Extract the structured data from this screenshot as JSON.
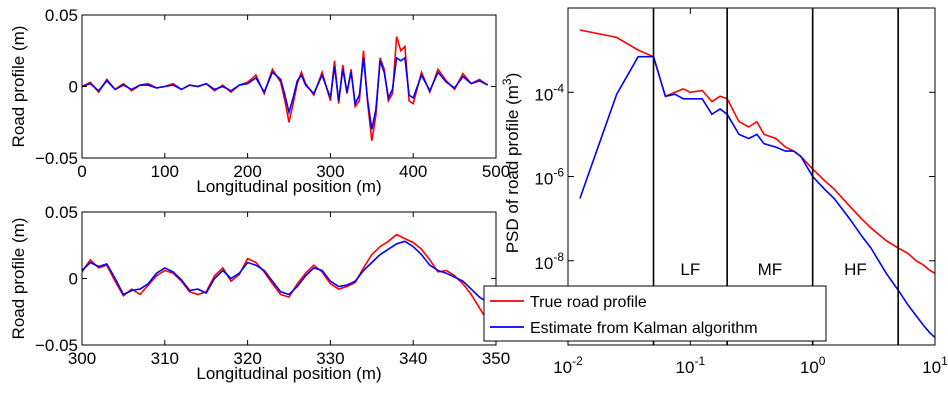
{
  "chart_data": [
    {
      "type": "line",
      "xlabel": "Longitudinal position (m)",
      "ylabel": "Road profile (m)",
      "xlim": [
        0,
        500
      ],
      "ylim": [
        -0.05,
        0.05
      ],
      "xticks": [
        "0",
        "100",
        "200",
        "300",
        "400",
        "500"
      ],
      "yticks": [
        "-0.05",
        "0",
        "0.05"
      ],
      "series": [
        {
          "color": "#ff0000",
          "x": [
            0,
            10,
            20,
            30,
            40,
            50,
            60,
            70,
            80,
            90,
            100,
            110,
            120,
            130,
            140,
            150,
            160,
            170,
            180,
            190,
            200,
            210,
            220,
            230,
            240,
            245,
            250,
            255,
            260,
            265,
            270,
            280,
            290,
            300,
            305,
            310,
            315,
            320,
            325,
            330,
            335,
            340,
            345,
            350,
            355,
            360,
            365,
            370,
            375,
            380,
            385,
            390,
            395,
            400,
            410,
            420,
            430,
            440,
            450,
            460,
            470,
            480,
            490
          ],
          "y": [
            0,
            0.003,
            -0.004,
            0.005,
            -0.002,
            0.002,
            -0.003,
            0.001,
            0.002,
            -0.001,
            0,
            0.002,
            -0.002,
            0.001,
            0,
            0.002,
            -0.003,
            0.001,
            -0.004,
            0.001,
            0.003,
            0.008,
            -0.005,
            0.012,
            0.003,
            -0.01,
            -0.025,
            -0.012,
            0.002,
            0.01,
            0.002,
            -0.006,
            0.01,
            -0.01,
            0.018,
            -0.012,
            0.015,
            -0.005,
            0.012,
            -0.014,
            -0.01,
            0.025,
            -0.012,
            -0.038,
            -0.02,
            0.02,
            0.012,
            -0.01,
            -0.005,
            0.035,
            0.025,
            0.028,
            -0.01,
            -0.012,
            0.01,
            -0.004,
            0.012,
            0.004,
            -0.002,
            0.009,
            0.002,
            0.005,
            0.001
          ]
        },
        {
          "color": "#0000ff",
          "x": [
            0,
            10,
            20,
            30,
            40,
            50,
            60,
            70,
            80,
            90,
            100,
            110,
            120,
            130,
            140,
            150,
            160,
            170,
            180,
            190,
            200,
            210,
            220,
            230,
            240,
            245,
            250,
            255,
            260,
            265,
            270,
            280,
            290,
            300,
            305,
            310,
            315,
            320,
            325,
            330,
            335,
            340,
            345,
            350,
            355,
            360,
            365,
            370,
            375,
            380,
            385,
            390,
            395,
            400,
            410,
            420,
            430,
            440,
            450,
            460,
            470,
            480,
            490
          ],
          "y": [
            0,
            0.002,
            -0.003,
            0.004,
            -0.002,
            0.001,
            -0.002,
            0.001,
            0.001,
            -0.001,
            0,
            0.001,
            -0.002,
            0.001,
            0,
            0.002,
            -0.002,
            0,
            -0.003,
            0.001,
            0.002,
            0.006,
            -0.004,
            0.01,
            0.005,
            -0.006,
            -0.018,
            -0.008,
            0.004,
            0.008,
            0.001,
            -0.005,
            0.008,
            -0.008,
            0.014,
            -0.01,
            0.012,
            -0.004,
            0.01,
            -0.012,
            -0.006,
            0.02,
            -0.01,
            -0.03,
            -0.016,
            0.018,
            0.01,
            -0.008,
            -0.002,
            0.02,
            0.018,
            0.02,
            -0.006,
            -0.008,
            0.008,
            -0.003,
            0.01,
            0.003,
            -0.001,
            0.007,
            0.002,
            0.004,
            0.001
          ]
        }
      ]
    },
    {
      "type": "line",
      "xlabel": "Longitudinal position (m)",
      "ylabel": "Road profile (m)",
      "xlim": [
        300,
        350
      ],
      "ylim": [
        -0.05,
        0.05
      ],
      "xticks": [
        "300",
        "310",
        "320",
        "330",
        "340",
        "350"
      ],
      "yticks": [
        "-0.05",
        "0",
        "0.05"
      ],
      "series": [
        {
          "color": "#ff0000",
          "x": [
            300,
            301,
            302,
            303,
            304,
            305,
            306,
            307,
            308,
            309,
            310,
            311,
            312,
            313,
            314,
            315,
            316,
            317,
            318,
            319,
            320,
            321,
            322,
            323,
            324,
            325,
            326,
            327,
            328,
            329,
            330,
            331,
            332,
            333,
            334,
            335,
            336,
            337,
            338,
            339,
            340,
            341,
            342,
            343,
            344,
            345,
            346,
            347,
            348,
            349,
            350
          ],
          "y": [
            0.005,
            0.014,
            0.008,
            0.01,
            -0.002,
            -0.013,
            -0.008,
            -0.012,
            -0.005,
            0.002,
            0.006,
            0.004,
            -0.002,
            -0.01,
            -0.012,
            -0.01,
            0.002,
            0.008,
            -0.002,
            0.003,
            0.015,
            0.012,
            0.005,
            -0.004,
            -0.012,
            -0.014,
            -0.004,
            0.004,
            0.01,
            0.005,
            -0.004,
            -0.008,
            -0.006,
            -0.003,
            0.008,
            0.018,
            0.024,
            0.028,
            0.033,
            0.03,
            0.027,
            0.022,
            0.014,
            0.005,
            0.006,
            0.002,
            -0.004,
            -0.012,
            -0.022,
            -0.032,
            -0.035
          ]
        },
        {
          "color": "#0000ff",
          "x": [
            300,
            301,
            302,
            303,
            304,
            305,
            306,
            307,
            308,
            309,
            310,
            311,
            312,
            313,
            314,
            315,
            316,
            317,
            318,
            319,
            320,
            321,
            322,
            323,
            324,
            325,
            326,
            327,
            328,
            329,
            330,
            331,
            332,
            333,
            334,
            335,
            336,
            337,
            338,
            339,
            340,
            341,
            342,
            343,
            344,
            345,
            346,
            347,
            348,
            349,
            350
          ],
          "y": [
            0.006,
            0.012,
            0.009,
            0.011,
            0,
            -0.012,
            -0.009,
            -0.008,
            -0.004,
            0.004,
            0.008,
            0.005,
            -0.001,
            -0.009,
            -0.008,
            -0.011,
            0,
            0.006,
            0,
            0.004,
            0.012,
            0.01,
            0.006,
            -0.002,
            -0.01,
            -0.012,
            -0.006,
            0.002,
            0.008,
            0.006,
            -0.002,
            -0.006,
            -0.005,
            -0.002,
            0.006,
            0.012,
            0.018,
            0.022,
            0.026,
            0.028,
            0.024,
            0.018,
            0.01,
            0.006,
            0.004,
            0.001,
            -0.002,
            -0.008,
            -0.014,
            -0.018,
            -0.024
          ]
        }
      ]
    },
    {
      "type": "line",
      "xscale": "log",
      "yscale": "log",
      "ylabel": "PSD of road profile (m3)",
      "xlim": [
        0.01,
        10
      ],
      "ylim": [
        1e-10,
        0.01
      ],
      "xticks": [
        "10-2",
        "10-1",
        "100",
        "101"
      ],
      "yticks": [
        "10-4",
        "10-6",
        "10-8"
      ],
      "vlines": [
        0.05,
        0.2,
        1,
        5
      ],
      "bands": [
        "LF",
        "MF",
        "HF"
      ],
      "series": [
        {
          "name": "True road profile",
          "color": "#ff0000",
          "x": [
            0.0125,
            0.025,
            0.0375,
            0.05,
            0.0625,
            0.075,
            0.0875,
            0.1,
            0.125,
            0.15,
            0.175,
            0.2,
            0.25,
            0.3,
            0.35,
            0.4,
            0.5,
            0.6,
            0.7,
            0.8,
            1,
            1.25,
            1.5,
            2,
            2.5,
            3,
            4,
            5,
            6,
            7,
            8,
            9,
            10
          ],
          "y": [
            0.003,
            0.002,
            0.001,
            0.0007,
            8e-05,
            0.0001,
            0.00012,
            0.0001,
            0.00011,
            6e-05,
            8e-05,
            7e-05,
            2e-05,
            1.5e-05,
            2e-05,
            1e-05,
            8e-06,
            5e-06,
            4e-06,
            3e-06,
            1.5e-06,
            8e-07,
            5e-07,
            2e-07,
            1e-07,
            6e-08,
            3e-08,
            2e-08,
            1.5e-08,
            1e-08,
            8e-09,
            6e-09,
            5e-09
          ]
        },
        {
          "name": "Estimate from Kalman algorithm",
          "color": "#0000ff",
          "x": [
            0.0125,
            0.025,
            0.0375,
            0.05,
            0.0625,
            0.075,
            0.0875,
            0.1,
            0.125,
            0.15,
            0.175,
            0.2,
            0.25,
            0.3,
            0.35,
            0.4,
            0.5,
            0.6,
            0.7,
            0.8,
            1,
            1.25,
            1.5,
            2,
            2.5,
            3,
            4,
            5,
            6,
            7,
            8,
            9,
            10
          ],
          "y": [
            3e-07,
            9e-05,
            0.0007,
            0.0007,
            8e-05,
            9e-05,
            7e-05,
            7e-05,
            7e-05,
            3e-05,
            4e-05,
            3e-05,
            1e-05,
            8e-06,
            1e-05,
            6e-06,
            5e-06,
            4e-06,
            4e-06,
            3e-06,
            1e-06,
            5e-07,
            3e-07,
            1e-07,
            4e-08,
            2e-08,
            5e-09,
            2e-09,
            9e-10,
            5e-10,
            3e-10,
            2e-10,
            1.5e-10
          ]
        }
      ],
      "legend": "bottom-left"
    }
  ]
}
